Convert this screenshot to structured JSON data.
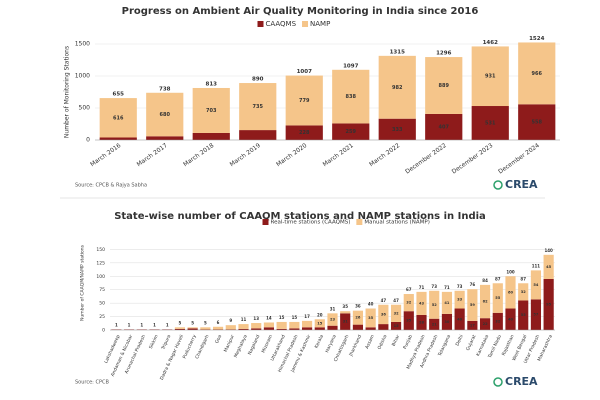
{
  "charts": [
    {
      "chart_data": {
        "type": "bar",
        "stacked": true,
        "title": "Progress on Ambient Air Quality Monitoring in India since 2016",
        "y_label": "Number of Monitoring Stations",
        "categories": [
          "March 2016",
          "March 2017",
          "March 2018",
          "March 2019",
          "March 2020",
          "March 2021",
          "March 2022",
          "December 2022",
          "December 2023",
          "December 2024"
        ],
        "series": [
          {
            "name": "CAAQMS",
            "color": "#8e1b1b",
            "values": [
              39,
              58,
              110,
              155,
              228,
              259,
              333,
              407,
              531,
              558
            ]
          },
          {
            "name": "NAMP",
            "color": "#f5c58a",
            "values": [
              616,
              680,
              703,
              735,
              779,
              838,
              982,
              889,
              931,
              966
            ]
          }
        ],
        "totals": [
          655,
          738,
          813,
          890,
          1007,
          1097,
          1315,
          1296,
          1462,
          1524
        ],
        "ylim": [
          0,
          1500
        ],
        "yticks": [
          0,
          500,
          1000,
          1500
        ],
        "grid": true,
        "source": "Source: CPCB & Rajya Sabha",
        "logo": "CREA"
      }
    },
    {
      "chart_data": {
        "type": "bar",
        "stacked": true,
        "title": "State-wise number of CAAQM stations and NAMP stations in India",
        "y_label": "Number of CAAQM/NAMP stations",
        "categories": [
          "Lakshadweep",
          "Andaman & Nicobar",
          "Arunachal Pradesh",
          "Sikkim",
          "Tripura",
          "Dadra & Nagar Haveli",
          "Puducherry",
          "Chandigarh",
          "Goa",
          "Manipur",
          "Meghalaya",
          "Nagaland",
          "Mizoram",
          "Uttarakhand",
          "Himachal Pradesh",
          "Jammu & Kashmir",
          "Kerala",
          "Haryana",
          "Chhattisgarh",
          "Jharkhand",
          "Assam",
          "Odisha",
          "Bihar",
          "Punjab",
          "Madhya Pradesh",
          "Andhra Pradesh",
          "Telangana",
          "Delhi",
          "Gujarat",
          "Karnataka",
          "Tamil Nadu",
          "Rajasthan",
          "West Bengal",
          "Uttar Pradesh",
          "Maharashtra"
        ],
        "series": [
          {
            "name": "Real-time stations (CAAQMS)",
            "color": "#8e1b1b",
            "values": [
              1,
              1,
              1,
              1,
              1,
              2,
              3,
              1,
              1,
              1,
              2,
              3,
              5,
              2,
              3,
              5,
              5,
              8,
              31,
              10,
              5,
              11,
              15,
              35,
              28,
              21,
              30,
              40,
              17,
              22,
              32,
              40,
              55,
              57,
              95
            ]
          },
          {
            "name": "Manual stations (NAMP)",
            "color": "#f5c58a",
            "values": [
              0,
              0,
              0,
              0,
              0,
              3,
              2,
              4,
              5,
              8,
              9,
              10,
              9,
              13,
              12,
              12,
              15,
              23,
              4,
              26,
              35,
              36,
              32,
              32,
              43,
              52,
              41,
              33,
              59,
              62,
              55,
              60,
              32,
              54,
              45
            ]
          }
        ],
        "totals": [
          1,
          1,
          1,
          1,
          1,
          5,
          5,
          5,
          6,
          9,
          11,
          13,
          14,
          15,
          15,
          17,
          20,
          31,
          35,
          36,
          40,
          47,
          47,
          67,
          71,
          73,
          71,
          73,
          76,
          84,
          87,
          100,
          87,
          111,
          140
        ],
        "ylim": [
          0,
          175
        ],
        "yticks": [
          0,
          25,
          50,
          75,
          100,
          125,
          150
        ],
        "grid": true,
        "source": "Source: CPCB",
        "logo": "CREA"
      }
    }
  ]
}
